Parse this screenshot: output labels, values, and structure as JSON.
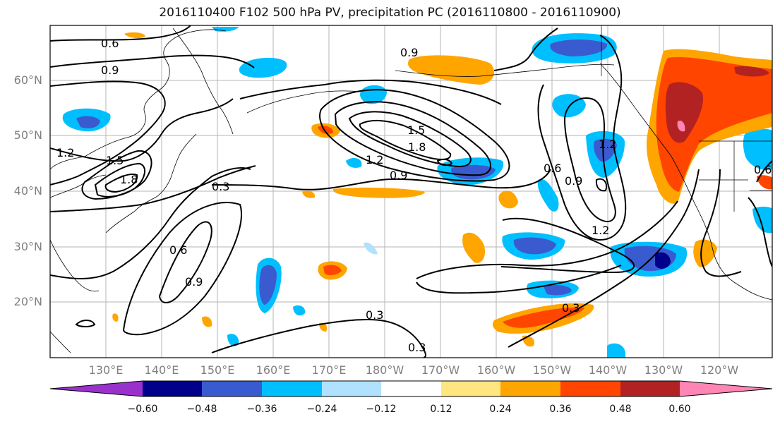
{
  "title": "2016110400 F102 500 hPa PV, precipitation PC (2016110800 - 2016110900)",
  "latitude_labels": [
    "60°N",
    "50°N",
    "40°N",
    "30°N",
    "20°N"
  ],
  "longitude_labels": [
    "130°E",
    "140°E",
    "150°E",
    "160°E",
    "170°E",
    "180°W",
    "170°W",
    "160°W",
    "150°W",
    "140°W",
    "130°W",
    "120°W"
  ],
  "contour_labels": [
    "0.6",
    "0.9",
    "1.2",
    "1.5",
    "1.8",
    "0.3"
  ],
  "colorbar": {
    "tick_labels": [
      "−0.60",
      "−0.48",
      "−0.36",
      "−0.24",
      "−0.12",
      "0.12",
      "0.24",
      "0.36",
      "0.48",
      "0.60"
    ],
    "colors": [
      "#9932cc",
      "#00008b",
      "#3a5bd0",
      "#00bfff",
      "#b0e2ff",
      "#ffffff",
      "#ffe680",
      "#ffa500",
      "#ff4500",
      "#b22222",
      "#ff85b5"
    ]
  }
}
